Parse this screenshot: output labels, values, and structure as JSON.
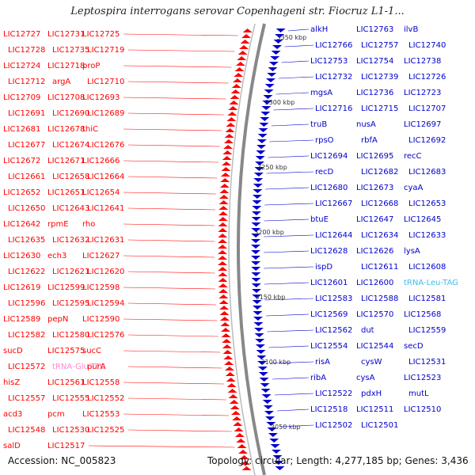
{
  "title": "Leptospira interrogans serovar Copenhageni str. Fiocruz L1-1...",
  "footer": {
    "accession": "Accession: NC_005823",
    "stats": "Topology: circular; Length: 4,277,185 bp; Genes: 3,436"
  },
  "colors": {
    "forward": "#ff0000",
    "reverse": "#0000cc",
    "rna": "#44bbee",
    "trna_left": "#ff88cc",
    "backbone": "#888888"
  },
  "kbp_markers": [
    "3350 kbp",
    "3300 kbp",
    "3250 kbp",
    "3200 kbp",
    "3150 kbp",
    "3100 kbp",
    "3050 kbp"
  ],
  "left_labels": [
    "LIC12727",
    "LIC12731",
    "LIC12725",
    "LIC12728",
    "LIC12735",
    "LIC12719",
    "LIC12724",
    "LIC12718",
    "proP",
    "LIC12712",
    "argA",
    "LIC12710",
    "LIC12709",
    "LIC12708",
    "LIC12693",
    "LIC12691",
    "LIC12690",
    "LIC12689",
    "LIC12681",
    "LIC12678",
    "thiC",
    "LIC12677",
    "LIC12674",
    "LIC12676",
    "LIC12672",
    "LIC12671",
    "LIC12666",
    "LIC12661",
    "LIC12658",
    "LIC12664",
    "LIC12652",
    "LIC12651",
    "LIC12654",
    "LIC12650",
    "LIC12643",
    "LIC12641",
    "LIC12642",
    "rpmE",
    "rho",
    "LIC12635",
    "LIC12632",
    "LIC12631",
    "LIC12630",
    "ech3",
    "LIC12627",
    "LIC12622",
    "LIC12621",
    "LIC12620",
    "LIC12619",
    "LIC12599",
    "LIC12598",
    "LIC12596",
    "LIC12595",
    "LIC12594",
    "LIC12589",
    "pepN",
    "LIC12590",
    "LIC12582",
    "LIC12580",
    "LIC12576",
    "sucD",
    "LIC12575",
    "sucC",
    "LIC12572",
    "tRNA-Glu-TTC",
    "purA",
    "hisZ",
    "LIC12561",
    "LIC12558",
    "LIC12557",
    "LIC12555",
    "LIC12552",
    "acd3",
    "pcm",
    "LIC12553",
    "LIC12548",
    "LIC12530",
    "LIC12525",
    "salD",
    "LIC12517"
  ],
  "right_labels": [
    "alkH",
    "LIC12763",
    "ilvB",
    "LIC12766",
    "LIC12757",
    "LIC12740",
    "LIC12753",
    "LIC12754",
    "LIC12738",
    "LIC12732",
    "LIC12739",
    "LIC12726",
    "mgsA",
    "LIC12736",
    "LIC12723",
    "LIC12716",
    "LIC12715",
    "LIC12707",
    "truB",
    "nusA",
    "LIC12697",
    "rpsO",
    "rbfA",
    "LIC12692",
    "LIC12694",
    "LIC12695",
    "recC",
    "recD",
    "LIC12682",
    "LIC12683",
    "LIC12680",
    "LIC12673",
    "cyaA",
    "LIC12667",
    "LIC12668",
    "LIC12653",
    "btuE",
    "LIC12647",
    "LIC12645",
    "LIC12644",
    "LIC12634",
    "LIC12633",
    "LIC12628",
    "LIC12626",
    "lysA",
    "ispD",
    "LIC12611",
    "LIC12608",
    "LIC12601",
    "LIC12600",
    "tRNA-Leu-TAG",
    "LIC12583",
    "LIC12588",
    "LIC12581",
    "LIC12569",
    "LIC12570",
    "LIC12568",
    "LIC12562",
    "dut",
    "LIC12559",
    "LIC12554",
    "LIC12544",
    "secD",
    "risA",
    "cysW",
    "LIC12531",
    "ribA",
    "cysA",
    "LIC12523",
    "LIC12522",
    "pdxH",
    "mutL",
    "LIC12518",
    "LIC12511",
    "LIC12510",
    "LIC12502",
    "LIC12501"
  ]
}
